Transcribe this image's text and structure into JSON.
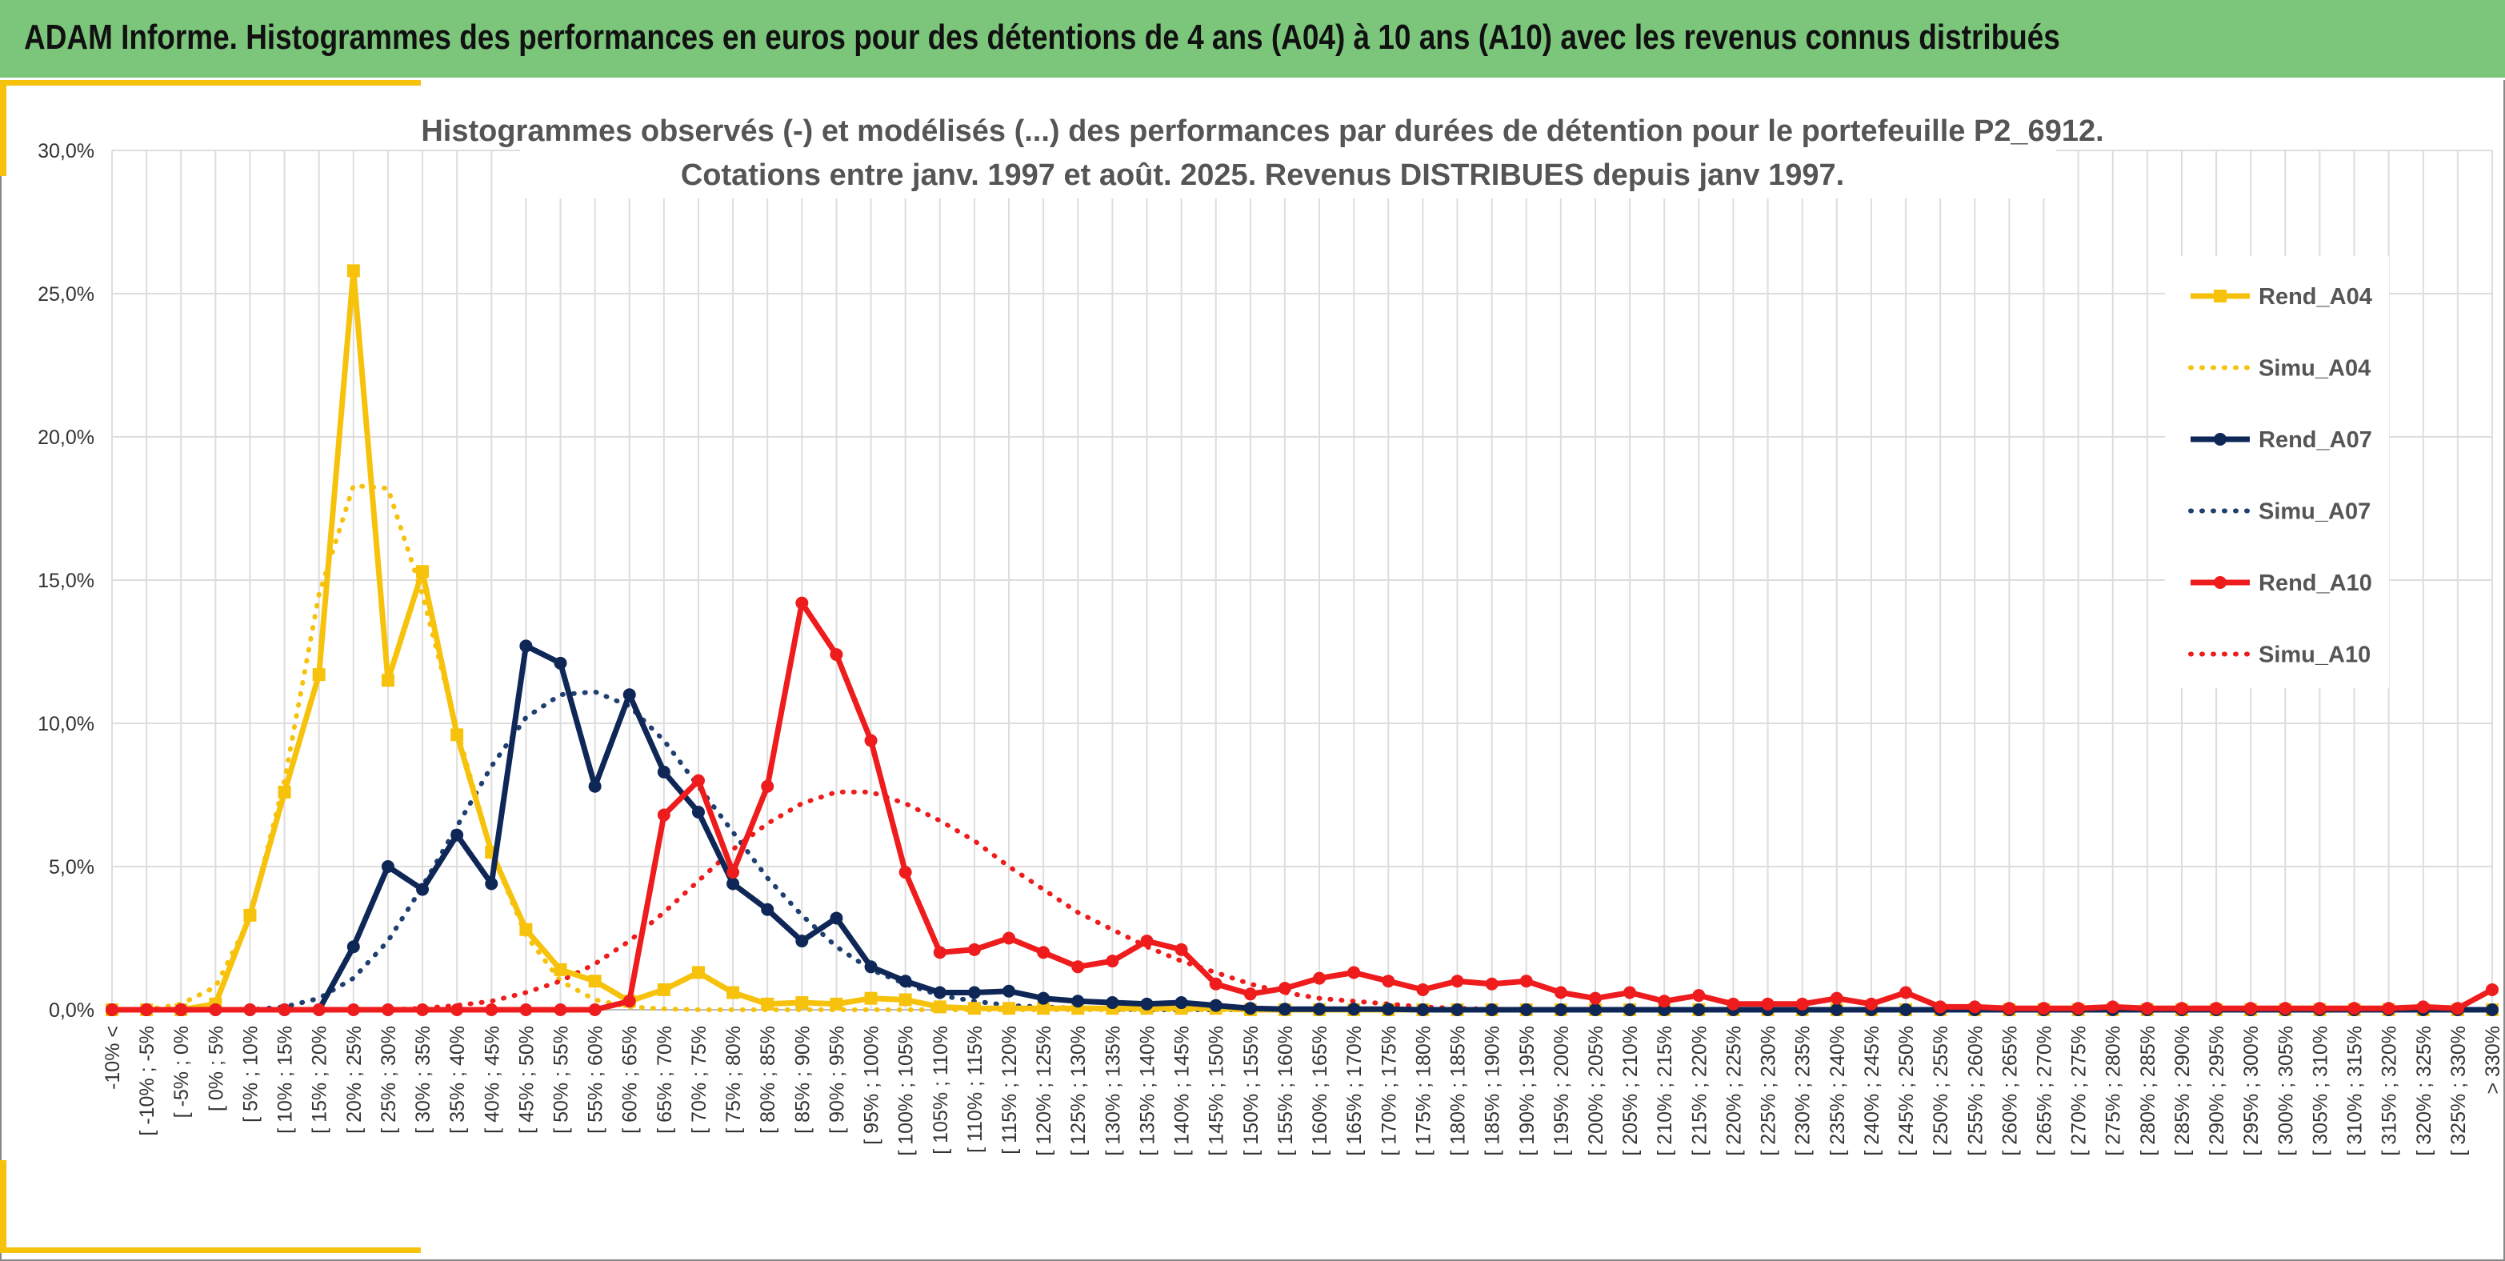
{
  "banner": {
    "title": "ADAM Informe. Histogrammes des performances en euros pour des détentions de 4 ans (A04) à 10 ans (A10) avec les revenus connus distribués"
  },
  "chart_data": {
    "type": "line",
    "title_line1": "Histogrammes observés (-) et modélisés (...) des performances par durées de détention pour le portefeuille P2_6912.",
    "title_line2": "Cotations entre janv. 1997 et août. 2025. Revenus DISTRIBUES depuis janv 1997.",
    "xlabel": "",
    "ylabel": "",
    "ylim": [
      0,
      30
    ],
    "yticks": [
      0,
      5,
      10,
      15,
      20,
      25,
      30
    ],
    "ytick_labels": [
      "0,0%",
      "5,0%",
      "10,0%",
      "15,0%",
      "20,0%",
      "25,0%",
      "30,0%"
    ],
    "grid": true,
    "legend_position": "right",
    "categories": [
      "-10% <",
      "[ -10% ; -5%",
      "[ -5% ; 0%",
      "[ 0% ; 5%",
      "[ 5% ; 10%",
      "[ 10% ; 15%",
      "[ 15% ; 20%",
      "[ 20% ; 25%",
      "[ 25% ; 30%",
      "[ 30% ; 35%",
      "[ 35% ; 40%",
      "[ 40% ; 45%",
      "[ 45% ; 50%",
      "[ 50% ; 55%",
      "[ 55% ; 60%",
      "[ 60% ; 65%",
      "[ 65% ; 70%",
      "[ 70% ; 75%",
      "[ 75% ; 80%",
      "[ 80% ; 85%",
      "[ 85% ; 90%",
      "[ 90% ; 95%",
      "[ 95% ; 100%",
      "[ 100% ; 105%",
      "[ 105% ; 110%",
      "[ 110% ; 115%",
      "[ 115% ; 120%",
      "[ 120% ; 125%",
      "[ 125% ; 130%",
      "[ 130% ; 135%",
      "[ 135% ; 140%",
      "[ 140% ; 145%",
      "[ 145% ; 150%",
      "[ 150% ; 155%",
      "[ 155% ; 160%",
      "[ 160% ; 165%",
      "[ 165% ; 170%",
      "[ 170% ; 175%",
      "[ 175% ; 180%",
      "[ 180% ; 185%",
      "[ 185% ; 190%",
      "[ 190% ; 195%",
      "[ 195% ; 200%",
      "[ 200% ; 205%",
      "[ 205% ; 210%",
      "[ 210% ; 215%",
      "[ 215% ; 220%",
      "[ 220% ; 225%",
      "[ 225% ; 230%",
      "[ 230% ; 235%",
      "[ 235% ; 240%",
      "[ 240% ; 245%",
      "[ 245% ; 250%",
      "[ 250% ; 255%",
      "[ 255% ; 260%",
      "[ 260% ; 265%",
      "[ 265% ; 270%",
      "[ 270% ; 275%",
      "[ 275% ; 280%",
      "[ 280% ; 285%",
      "[ 285% ; 290%",
      "[ 290% ; 295%",
      "[ 295% ; 300%",
      "[ 300% ; 305%",
      "[ 305% ; 310%",
      "[ 310% ; 315%",
      "[ 315% ; 320%",
      "[ 320% ; 325%",
      "[ 325% ; 330%",
      "> 330%"
    ],
    "series": [
      {
        "name": "Rend_A04",
        "style": "solid",
        "marker": "square",
        "color": "#f6c20c",
        "values": [
          0,
          0,
          0,
          0.2,
          3.3,
          7.6,
          11.7,
          25.8,
          11.5,
          15.3,
          9.6,
          5.5,
          2.8,
          1.4,
          1.0,
          0.3,
          0.7,
          1.3,
          0.6,
          0.2,
          0.25,
          0.2,
          0.4,
          0.35,
          0.1,
          0.05,
          0.05,
          0.05,
          0.05,
          0.05,
          0.05,
          0.05,
          0.05,
          0,
          0,
          0,
          0,
          0,
          0,
          0,
          0,
          0,
          0,
          0,
          0,
          0,
          0,
          0,
          0,
          0,
          0,
          0,
          0,
          0,
          0,
          0,
          0,
          0,
          0,
          0,
          0,
          0,
          0,
          0,
          0,
          0,
          0,
          0,
          0,
          0
        ]
      },
      {
        "name": "Simu_A04",
        "style": "dotted",
        "marker": "none",
        "color": "#f6c20c",
        "values": [
          0,
          0,
          0.2,
          0.8,
          3.2,
          8.0,
          14.5,
          18.3,
          18.2,
          14.5,
          9.8,
          5.5,
          2.6,
          1.0,
          0.35,
          0.1,
          0.03,
          0,
          0,
          0,
          0,
          0,
          0,
          0,
          0,
          0,
          0,
          0,
          0,
          0,
          0,
          0,
          0,
          0,
          0,
          0,
          0,
          0,
          0,
          0,
          0,
          0,
          0,
          0,
          0,
          0,
          0,
          0,
          0,
          0,
          0,
          0,
          0,
          0,
          0,
          0,
          0,
          0,
          0,
          0,
          0,
          0,
          0,
          0,
          0,
          0,
          0,
          0,
          0,
          0
        ]
      },
      {
        "name": "Rend_A07",
        "style": "solid",
        "marker": "circle",
        "color": "#0f2757",
        "values": [
          0,
          0,
          0,
          0,
          0,
          0,
          0,
          2.2,
          5.0,
          4.2,
          6.1,
          4.4,
          12.7,
          12.1,
          7.8,
          11.0,
          8.3,
          6.9,
          4.4,
          3.5,
          2.4,
          3.2,
          1.5,
          1.0,
          0.6,
          0.6,
          0.65,
          0.4,
          0.3,
          0.25,
          0.2,
          0.25,
          0.15,
          0.05,
          0.02,
          0.02,
          0.02,
          0.02,
          0,
          0,
          0,
          0,
          0,
          0,
          0,
          0,
          0,
          0,
          0,
          0,
          0,
          0,
          0,
          0,
          0,
          0,
          0,
          0,
          0,
          0,
          0,
          0,
          0,
          0,
          0,
          0,
          0,
          0,
          0,
          0
        ]
      },
      {
        "name": "Simu_A07",
        "style": "dotted",
        "marker": "none",
        "color": "#1f3f70",
        "values": [
          0,
          0,
          0,
          0,
          0,
          0.1,
          0.4,
          1.1,
          2.4,
          4.3,
          6.4,
          8.5,
          10.2,
          11.0,
          11.1,
          10.6,
          9.4,
          7.8,
          6.2,
          4.6,
          3.3,
          2.2,
          1.4,
          0.9,
          0.5,
          0.3,
          0.15,
          0.1,
          0.05,
          0.02,
          0,
          0,
          0,
          0,
          0,
          0,
          0,
          0,
          0,
          0,
          0,
          0,
          0,
          0,
          0,
          0,
          0,
          0,
          0,
          0,
          0,
          0,
          0,
          0,
          0,
          0,
          0,
          0,
          0,
          0,
          0,
          0,
          0,
          0,
          0,
          0,
          0,
          0,
          0,
          0
        ]
      },
      {
        "name": "Rend_A10",
        "style": "solid",
        "marker": "circle",
        "color": "#ee1c1c",
        "values": [
          0,
          0,
          0,
          0,
          0,
          0,
          0,
          0,
          0,
          0,
          0,
          0,
          0,
          0,
          0,
          0.3,
          6.8,
          8.0,
          4.8,
          7.8,
          14.2,
          12.4,
          9.4,
          4.8,
          2.0,
          2.1,
          2.5,
          2.0,
          1.5,
          1.7,
          2.4,
          2.1,
          0.9,
          0.55,
          0.75,
          1.1,
          1.3,
          1.0,
          0.7,
          1.0,
          0.9,
          1.0,
          0.6,
          0.4,
          0.6,
          0.3,
          0.5,
          0.2,
          0.2,
          0.2,
          0.4,
          0.2,
          0.6,
          0.1,
          0.1,
          0.05,
          0.05,
          0.05,
          0.1,
          0.05,
          0.05,
          0.05,
          0.05,
          0.05,
          0.05,
          0.05,
          0.05,
          0.1,
          0.05,
          0.7
        ]
      },
      {
        "name": "Simu_A10",
        "style": "dotted",
        "marker": "none",
        "color": "#ee1c1c",
        "values": [
          0,
          0,
          0,
          0,
          0,
          0,
          0,
          0,
          0,
          0.05,
          0.15,
          0.3,
          0.6,
          1.0,
          1.6,
          2.4,
          3.4,
          4.5,
          5.6,
          6.5,
          7.2,
          7.6,
          7.6,
          7.2,
          6.6,
          5.9,
          5.0,
          4.2,
          3.4,
          2.8,
          2.2,
          1.7,
          1.3,
          0.9,
          0.6,
          0.4,
          0.3,
          0.2,
          0.1,
          0.05,
          0.02,
          0,
          0,
          0,
          0,
          0,
          0,
          0,
          0,
          0,
          0,
          0,
          0,
          0,
          0,
          0,
          0,
          0,
          0,
          0,
          0,
          0,
          0,
          0,
          0,
          0,
          0,
          0,
          0,
          0
        ]
      }
    ]
  }
}
